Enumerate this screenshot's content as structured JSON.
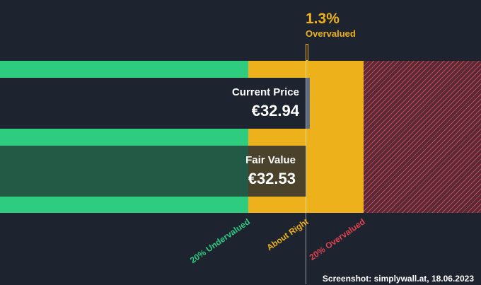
{
  "colors": {
    "background": "#1e2330",
    "undervalued": "#2ecc7f",
    "about_right": "#edb21b",
    "overvalued": "#e0424f"
  },
  "chart_data": {
    "type": "bar",
    "title": "",
    "categories": [
      "Current Price",
      "Fair Value"
    ],
    "values": [
      32.94,
      32.53
    ],
    "unit": "€",
    "value_labels": [
      "€32.94",
      "€32.53"
    ],
    "valuation_difference_pct": 1.3,
    "valuation_status": "Overvalued",
    "headline": {
      "percent": "1.3%",
      "status": "Overvalued"
    },
    "zones": [
      {
        "label": "20% Undervalued"
      },
      {
        "label": "About Right"
      },
      {
        "label": "20% Overvalued"
      }
    ]
  },
  "footer": {
    "credit": "Screenshot: simplywall.at, 18.06.2023"
  }
}
